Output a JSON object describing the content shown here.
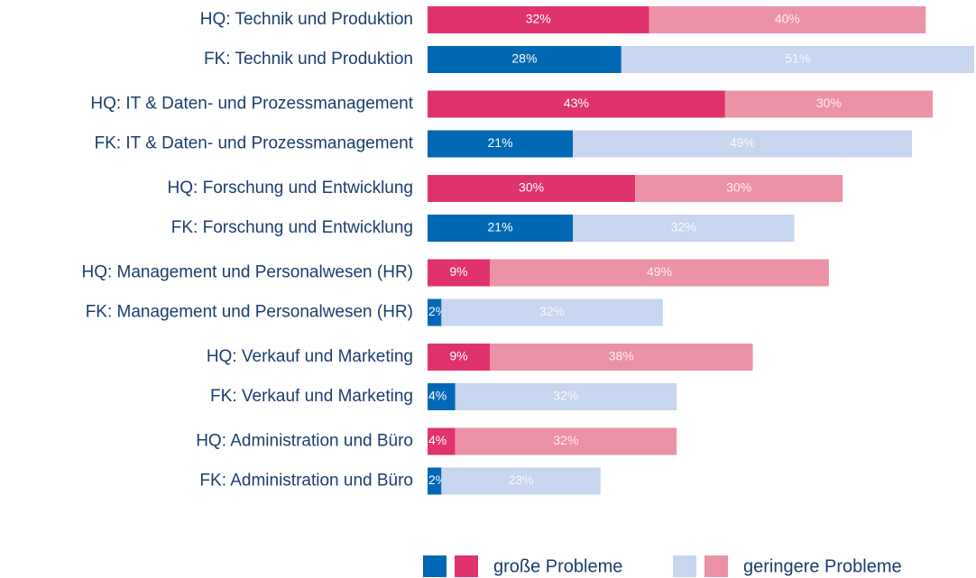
{
  "chart_data": {
    "type": "bar",
    "orientation": "horizontal",
    "stacked": true,
    "categories": [
      "HQ: Technik und Produktion",
      "FK: Technik und Produktion",
      "HQ: IT & Daten- und Prozessmanagement",
      "FK: IT & Daten- und Prozessmanagement",
      "HQ: Forschung und Entwicklung",
      "FK: Forschung und Entwicklung",
      "HQ: Management und Personalwesen (HR)",
      "FK: Management und Personalwesen (HR)",
      "HQ: Verkauf und Marketing",
      "FK: Verkauf und Marketing",
      "HQ: Administration und Büro",
      "FK: Administration und Büro"
    ],
    "series": [
      {
        "name": "große Probleme",
        "colors": [
          "#e0336e",
          "#0068b4",
          "#e0336e",
          "#0068b4",
          "#e0336e",
          "#0068b4",
          "#e0336e",
          "#0068b4",
          "#e0336e",
          "#0068b4",
          "#e0336e",
          "#0068b4"
        ],
        "values": [
          32,
          28,
          43,
          21,
          30,
          21,
          9,
          2,
          9,
          4,
          4,
          2
        ],
        "value_labels": [
          "32%",
          "28%",
          "43%",
          "21%",
          "30%",
          "21%",
          "9%",
          "2%",
          "9%",
          "4%",
          "4%",
          "2%"
        ]
      },
      {
        "name": "geringere Probleme",
        "colors": [
          "#ec92a7",
          "#c7d5ee",
          "#ec92a7",
          "#c7d5ee",
          "#ec92a7",
          "#c7d5ee",
          "#ec92a7",
          "#c7d5ee",
          "#ec92a7",
          "#c7d5ee",
          "#ec92a7",
          "#c7d5ee"
        ],
        "values": [
          40,
          51,
          30,
          49,
          30,
          32,
          49,
          32,
          38,
          32,
          32,
          23
        ],
        "value_labels": [
          "40%",
          "51%",
          "30%",
          "49%",
          "30%",
          "32%",
          "49%",
          "32%",
          "38%",
          "32%",
          "32%",
          "23%"
        ]
      }
    ]
  }
}
